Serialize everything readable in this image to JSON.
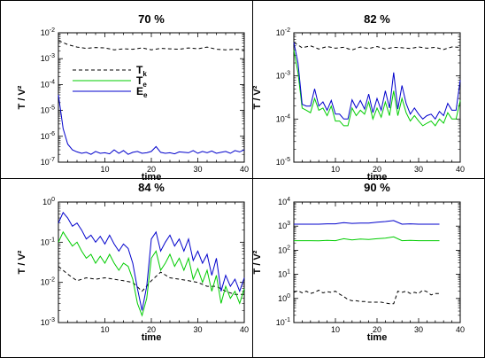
{
  "chart_data": [
    {
      "type": "line",
      "title": "70 %",
      "xlabel": "time",
      "ylabel": "T / V²",
      "xlim": [
        0,
        40
      ],
      "ylim": [
        1e-07,
        0.01
      ],
      "ylog": true,
      "xticks": [
        "10",
        "20",
        "30",
        "40"
      ],
      "yticks": [
        {
          "mant": "10",
          "exp": "-2"
        },
        {
          "mant": "10",
          "exp": "-3"
        },
        {
          "mant": "10",
          "exp": "-4"
        },
        {
          "mant": "10",
          "exp": "-5"
        },
        {
          "mant": "10",
          "exp": "-6"
        },
        {
          "mant": "10",
          "exp": "-7"
        }
      ],
      "legend": {
        "position": "left",
        "entries": [
          {
            "series": 0,
            "label": "T",
            "sub": "k"
          },
          {
            "series": 1,
            "label": "T",
            "sub": "e"
          },
          {
            "series": 2,
            "label": "E",
            "sub": "e"
          }
        ]
      },
      "series": [
        {
          "name": "Tk",
          "color": "#000000",
          "dash": "4,3",
          "x": [
            0,
            2,
            4,
            6,
            8,
            10,
            12,
            14,
            16,
            18,
            20,
            22,
            24,
            26,
            28,
            30,
            32,
            34,
            36,
            38,
            40
          ],
          "y": [
            0.005,
            0.0035,
            0.0028,
            0.0025,
            0.0027,
            0.0026,
            0.0022,
            0.0024,
            0.0023,
            0.0026,
            0.0022,
            0.0025,
            0.0024,
            0.0023,
            0.0026,
            0.0024,
            0.0028,
            0.0023,
            0.0022,
            0.0023,
            0.0022
          ]
        },
        {
          "name": "Te",
          "color": "#00cc00",
          "dash": "",
          "x": [],
          "y": []
        },
        {
          "name": "Ee",
          "color": "#0000cc",
          "dash": "",
          "x": [
            0,
            1,
            2,
            3,
            4,
            5,
            6,
            7,
            8,
            9,
            10,
            11,
            12,
            13,
            14,
            15,
            16,
            17,
            18,
            19,
            20,
            21,
            22,
            23,
            24,
            25,
            26,
            27,
            28,
            29,
            30,
            31,
            32,
            33,
            34,
            35,
            36,
            37,
            38,
            39,
            40
          ],
          "y": [
            4e-05,
            2e-06,
            5e-07,
            3e-07,
            2.5e-07,
            2.2e-07,
            2.4e-07,
            2e-07,
            2.6e-07,
            2.2e-07,
            2.3e-07,
            2.1e-07,
            3e-07,
            2.2e-07,
            2.8e-07,
            2e-07,
            2.4e-07,
            2.6e-07,
            2.2e-07,
            2.3e-07,
            2.6e-07,
            4e-07,
            2.4e-07,
            2.2e-07,
            2.3e-07,
            2.1e-07,
            2.5e-07,
            2.4e-07,
            2.3e-07,
            2.8e-07,
            2.2e-07,
            2.6e-07,
            2.3e-07,
            2.7e-07,
            2.2e-07,
            2.4e-07,
            2.6e-07,
            2.2e-07,
            2.8e-07,
            2.5e-07,
            3e-07
          ]
        }
      ]
    },
    {
      "type": "line",
      "title": "82 %",
      "xlabel": "time",
      "ylabel": "T / V²",
      "xlim": [
        0,
        40
      ],
      "ylim": [
        1e-05,
        0.01
      ],
      "ylog": true,
      "xticks": [
        "10",
        "20",
        "30",
        "40"
      ],
      "yticks": [
        {
          "mant": "10",
          "exp": "-2"
        },
        {
          "mant": "10",
          "exp": "-3"
        },
        {
          "mant": "10",
          "exp": "-4"
        },
        {
          "mant": "10",
          "exp": "-5"
        }
      ],
      "series": [
        {
          "name": "Tk",
          "color": "#000000",
          "dash": "4,3",
          "x": [
            0,
            2,
            4,
            6,
            8,
            10,
            12,
            14,
            16,
            18,
            20,
            22,
            24,
            26,
            28,
            30,
            32,
            34,
            36,
            38,
            40
          ],
          "y": [
            0.006,
            0.0045,
            0.005,
            0.0042,
            0.0048,
            0.0044,
            0.0046,
            0.004,
            0.0047,
            0.0043,
            0.0048,
            0.0042,
            0.0046,
            0.0045,
            0.0043,
            0.0047,
            0.0044,
            0.0046,
            0.0041,
            0.0047,
            0.0046
          ]
        },
        {
          "name": "Te",
          "color": "#00cc00",
          "dash": "",
          "x": [
            0,
            1,
            2,
            3,
            4,
            5,
            6,
            7,
            8,
            9,
            10,
            11,
            12,
            13,
            14,
            15,
            16,
            17,
            18,
            19,
            20,
            21,
            22,
            23,
            24,
            25,
            26,
            27,
            28,
            29,
            30,
            31,
            32,
            33,
            34,
            35,
            36,
            37,
            38,
            39,
            40
          ],
          "y": [
            0.004,
            0.0012,
            0.00018,
            0.00016,
            0.00014,
            0.0003,
            0.00016,
            0.00018,
            0.00012,
            0.0002,
            9e-05,
            9e-05,
            7e-05,
            7e-05,
            0.00018,
            0.00012,
            0.00016,
            0.00013,
            0.00025,
            0.0001,
            0.00018,
            0.00011,
            0.00025,
            0.00012,
            0.00045,
            0.00012,
            0.0003,
            0.00014,
            9e-05,
            0.00012,
            9e-05,
            7e-05,
            8e-05,
            9e-05,
            7e-05,
            0.0001,
            8e-05,
            0.00014,
            0.0001,
            0.0001,
            0.00027
          ]
        },
        {
          "name": "Ee",
          "color": "#0000cc",
          "dash": "",
          "x": [
            0,
            1,
            2,
            3,
            4,
            5,
            6,
            7,
            8,
            9,
            10,
            11,
            12,
            13,
            14,
            15,
            16,
            17,
            18,
            19,
            20,
            21,
            22,
            23,
            24,
            25,
            26,
            27,
            28,
            29,
            30,
            31,
            32,
            33,
            34,
            35,
            36,
            37,
            38,
            39,
            40
          ],
          "y": [
            0.006,
            0.002,
            0.00022,
            0.0002,
            0.0002,
            0.0005,
            0.0002,
            0.00025,
            0.00016,
            0.00027,
            0.00013,
            0.00013,
            0.0001,
            0.0001,
            0.00028,
            0.00018,
            0.00027,
            0.00017,
            0.00038,
            0.00014,
            0.0003,
            0.00016,
            0.00045,
            0.00018,
            0.0012,
            0.00017,
            0.0006,
            0.00023,
            0.00013,
            0.00018,
            0.00013,
            0.0001,
            0.00012,
            0.00013,
            0.0001,
            0.00015,
            0.00012,
            0.00023,
            0.00016,
            0.00016,
            0.0008
          ]
        }
      ]
    },
    {
      "type": "line",
      "title": "84 %",
      "xlabel": "time",
      "ylabel": "T / V²",
      "xlim": [
        0,
        40
      ],
      "ylim": [
        0.001,
        1
      ],
      "ylog": true,
      "xticks": [
        "10",
        "20",
        "30",
        "40"
      ],
      "yticks": [
        {
          "mant": "10",
          "exp": "0"
        },
        {
          "mant": "10",
          "exp": "-1"
        },
        {
          "mant": "10",
          "exp": "-2"
        },
        {
          "mant": "10",
          "exp": "-3"
        }
      ],
      "series": [
        {
          "name": "Tk",
          "color": "#000000",
          "dash": "4,3",
          "x": [
            0,
            2,
            4,
            6,
            8,
            10,
            12,
            14,
            16,
            18,
            20,
            22,
            24,
            26,
            28,
            30,
            32,
            34,
            36,
            38,
            40
          ],
          "y": [
            0.025,
            0.016,
            0.011,
            0.013,
            0.012,
            0.013,
            0.012,
            0.011,
            0.01,
            0.006,
            0.011,
            0.018,
            0.013,
            0.012,
            0.011,
            0.01,
            0.008,
            0.008,
            0.006,
            0.005,
            0.005
          ]
        },
        {
          "name": "Te",
          "color": "#00cc00",
          "dash": "",
          "x": [
            0,
            1,
            2,
            3,
            4,
            5,
            6,
            7,
            8,
            9,
            10,
            11,
            12,
            13,
            14,
            15,
            16,
            17,
            18,
            19,
            20,
            21,
            22,
            23,
            24,
            25,
            26,
            27,
            28,
            29,
            30,
            31,
            32,
            33,
            34,
            35,
            36,
            37,
            38,
            39,
            40
          ],
          "y": [
            0.1,
            0.18,
            0.12,
            0.08,
            0.1,
            0.06,
            0.04,
            0.05,
            0.03,
            0.045,
            0.03,
            0.05,
            0.03,
            0.02,
            0.03,
            0.025,
            0.012,
            0.003,
            0.0015,
            0.004,
            0.04,
            0.06,
            0.02,
            0.03,
            0.05,
            0.025,
            0.04,
            0.02,
            0.04,
            0.012,
            0.022,
            0.01,
            0.02,
            0.006,
            0.015,
            0.003,
            0.008,
            0.004,
            0.006,
            0.003,
            0.007
          ]
        },
        {
          "name": "Ee",
          "color": "#0000cc",
          "dash": "",
          "x": [
            0,
            1,
            2,
            3,
            4,
            5,
            6,
            7,
            8,
            9,
            10,
            11,
            12,
            13,
            14,
            15,
            16,
            17,
            18,
            19,
            20,
            21,
            22,
            23,
            24,
            25,
            26,
            27,
            28,
            29,
            30,
            31,
            32,
            33,
            34,
            35,
            36,
            37,
            38,
            39,
            40
          ],
          "y": [
            0.3,
            0.55,
            0.4,
            0.25,
            0.3,
            0.2,
            0.12,
            0.15,
            0.1,
            0.14,
            0.09,
            0.15,
            0.09,
            0.06,
            0.09,
            0.07,
            0.03,
            0.007,
            0.002,
            0.008,
            0.12,
            0.18,
            0.06,
            0.1,
            0.15,
            0.08,
            0.12,
            0.06,
            0.12,
            0.035,
            0.06,
            0.03,
            0.05,
            0.015,
            0.04,
            0.006,
            0.015,
            0.008,
            0.012,
            0.006,
            0.013
          ]
        }
      ]
    },
    {
      "type": "line",
      "title": "90 %",
      "xlabel": "time",
      "ylabel": "T / V²",
      "xlim": [
        0,
        40
      ],
      "ylim": [
        0.1,
        10000
      ],
      "ylog": true,
      "xticks": [
        "10",
        "20",
        "30",
        "40"
      ],
      "yticks": [
        {
          "mant": "10",
          "exp": "4"
        },
        {
          "mant": "10",
          "exp": "3"
        },
        {
          "mant": "10",
          "exp": "2"
        },
        {
          "mant": "10",
          "exp": "1"
        },
        {
          "mant": "10",
          "exp": "0"
        },
        {
          "mant": "10",
          "exp": "-1"
        }
      ],
      "series": [
        {
          "name": "Tk",
          "color": "#000000",
          "dash": "4,3",
          "x": [
            0,
            1,
            2,
            3,
            4,
            5,
            6,
            7,
            8,
            9,
            10,
            11,
            12,
            13,
            14,
            15,
            16,
            17,
            18,
            19,
            20,
            21,
            22,
            23,
            24,
            25,
            26,
            27,
            28,
            29,
            30,
            31,
            32,
            33,
            34,
            35
          ],
          "y": [
            1.8,
            2.1,
            1.7,
            2.0,
            1.6,
            1.8,
            2.2,
            1.7,
            1.9,
            1.8,
            2.0,
            1.5,
            1.2,
            0.9,
            0.8,
            0.8,
            0.75,
            0.75,
            0.7,
            0.7,
            0.7,
            0.7,
            0.65,
            0.6,
            0.6,
            2.0,
            1.8,
            2.0,
            1.6,
            1.8,
            1.6,
            2.2,
            1.9,
            1.4,
            1.6,
            1.6
          ]
        },
        {
          "name": "Te",
          "color": "#00cc00",
          "dash": "",
          "x": [
            0,
            2,
            4,
            6,
            8,
            10,
            12,
            14,
            16,
            18,
            20,
            22,
            24,
            26,
            28,
            30,
            32,
            34,
            35
          ],
          "y": [
            250,
            250,
            250,
            245,
            255,
            250,
            300,
            270,
            290,
            280,
            300,
            320,
            360,
            250,
            255,
            250,
            250,
            250,
            250
          ]
        },
        {
          "name": "Ee",
          "color": "#0000cc",
          "dash": "",
          "x": [
            0,
            2,
            4,
            6,
            8,
            10,
            12,
            14,
            16,
            18,
            20,
            22,
            24,
            26,
            28,
            30,
            32,
            34,
            35
          ],
          "y": [
            1200,
            1200,
            1200,
            1200,
            1250,
            1250,
            1400,
            1300,
            1350,
            1350,
            1450,
            1550,
            1700,
            1200,
            1250,
            1200,
            1200,
            1200,
            1200
          ]
        }
      ]
    }
  ]
}
